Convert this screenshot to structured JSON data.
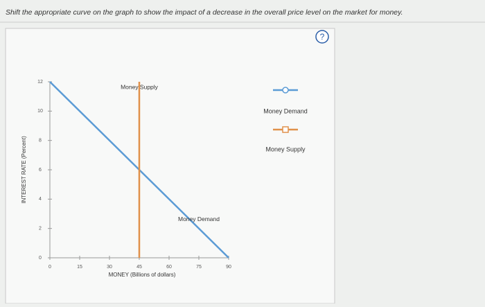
{
  "instruction": "Shift the appropriate curve on the graph to show the impact of a decrease in the overall price level on the market for money.",
  "help_icon": "?",
  "chart_data": {
    "type": "line",
    "xlabel": "MONEY (Billions of dollars)",
    "ylabel": "INTEREST RATE (Percent)",
    "xlim": [
      0,
      90
    ],
    "xticks": [
      0,
      15,
      30,
      45,
      60,
      75,
      90
    ],
    "ylim": [
      0,
      12
    ],
    "yticks": [
      0,
      2,
      4,
      6,
      8,
      10,
      12
    ],
    "series": [
      {
        "name": "Money Demand",
        "color": "#5b9bd5",
        "marker": "circle",
        "x": [
          0,
          90
        ],
        "values": [
          12,
          0
        ]
      },
      {
        "name": "Money Supply",
        "color": "#e0914a",
        "marker": "square",
        "x": [
          45,
          45
        ],
        "values": [
          0,
          12
        ]
      }
    ],
    "annotations": [
      {
        "text": "Money Supply",
        "x": 45,
        "y": 12
      },
      {
        "text": "Money Demand",
        "x": 75,
        "y": 3
      }
    ]
  }
}
